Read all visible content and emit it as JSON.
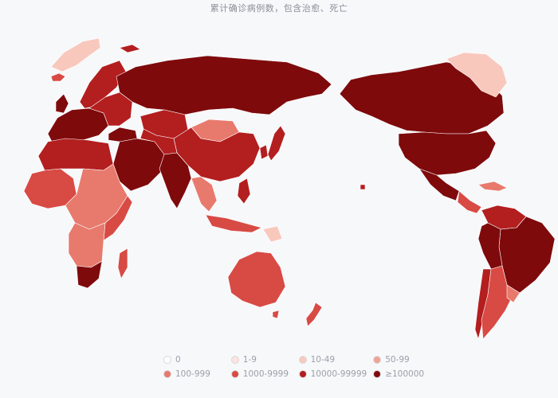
{
  "title": "累计确诊病例数，包含治愈、死亡",
  "colors": {
    "background": "#f7f8fa",
    "country_border": "#ffffff"
  },
  "legend": [
    {
      "label": "0",
      "color": "#ffffff"
    },
    {
      "label": "1-9",
      "color": "#fde4e0"
    },
    {
      "label": "10-49",
      "color": "#f8c8bd"
    },
    {
      "label": "50-99",
      "color": "#f0a296"
    },
    {
      "label": "100-999",
      "color": "#e77a6d"
    },
    {
      "label": "1000-9999",
      "color": "#d84a44"
    },
    {
      "label": "10000-99999",
      "color": "#b31e1f"
    },
    {
      "label": "≥100000",
      "color": "#7e0a0c"
    }
  ]
}
